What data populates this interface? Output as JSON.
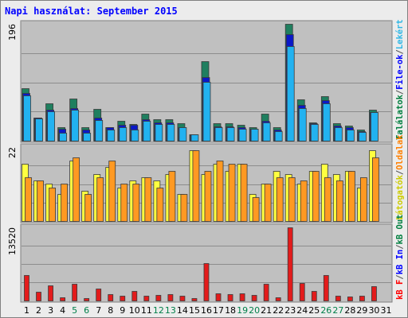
{
  "title": "Napi használat: September 2015",
  "chart_data": {
    "type": "bar",
    "title": "Napi használat: September 2015",
    "x": [
      "1",
      "2",
      "3",
      "4",
      "5",
      "6",
      "7",
      "8",
      "9",
      "10",
      "11",
      "12",
      "13",
      "14",
      "15",
      "16",
      "17",
      "18",
      "19",
      "20",
      "21",
      "22",
      "23",
      "24",
      "25",
      "26",
      "27",
      "28",
      "29",
      "30",
      "31"
    ],
    "weekend_days": [
      "5",
      "6",
      "12",
      "13",
      "19",
      "20",
      "26",
      "27"
    ],
    "panels": [
      {
        "id": "hits",
        "scale_max_label": "196",
        "ylim": [
          0,
          196
        ],
        "right_labels": [
          {
            "text": "Találatok",
            "color": "#007f3f"
          },
          {
            "text": "/",
            "color": "#555555"
          },
          {
            "text": "File-ok",
            "color": "#0000ff"
          },
          {
            "text": "/",
            "color": "#555555"
          },
          {
            "text": "Lekért",
            "color": "#2fb7e6"
          }
        ],
        "series": [
          {
            "name": "Találatok",
            "color": "#1f7f5f",
            "values": [
              88,
              38,
              63,
              23,
              71,
              23,
              53,
              23,
              33,
              28,
              45,
              36,
              36,
              29,
              11,
              133,
              29,
              29,
              26,
              23,
              45,
              22,
              196,
              69,
              31,
              74,
              29,
              25,
              18,
              52,
              0
            ]
          },
          {
            "name": "File-ok",
            "color": "#0a18c8",
            "values": [
              80,
              38,
              52,
              20,
              55,
              19,
              38,
              22,
              27,
              26,
              36,
              31,
              31,
              23,
              10,
              107,
              24,
              24,
              22,
              20,
              33,
              18,
              178,
              60,
              29,
              68,
              25,
              22,
              16,
              48,
              0
            ]
          },
          {
            "name": "Lekért",
            "color": "#22b2f0",
            "values": [
              76,
              37,
              49,
              13,
              52,
              13,
              35,
              19,
              22,
              19,
              33,
              28,
              28,
              22,
              10,
              99,
              22,
              22,
              20,
              20,
              30,
              16,
              159,
              55,
              28,
              62,
              22,
              19,
              15,
              48,
              0
            ]
          }
        ]
      },
      {
        "id": "visits",
        "scale_max_label": "22",
        "ylim": [
          0,
          22
        ],
        "right_labels": [
          {
            "text": "Látogatók",
            "color": "#cccc00"
          },
          {
            "text": "/",
            "color": "#555555"
          },
          {
            "text": "Oldalak",
            "color": "#ff8000"
          }
        ],
        "series": [
          {
            "name": "Látogatók",
            "color": "#ffff40",
            "values": [
              17,
              12,
              11,
              8,
              18,
              9,
              14,
              16,
              10,
              12,
              13,
              12,
              14,
              8,
              21,
              14,
              17,
              15,
              17,
              8,
              11,
              15,
              14,
              11,
              15,
              17,
              14,
              15,
              10,
              21,
              0
            ]
          },
          {
            "name": "Oldalak",
            "color": "#ff9922",
            "values": [
              13,
              12,
              10,
              11,
              19,
              8,
              13,
              18,
              11,
              11,
              13,
              10,
              15,
              8,
              21,
              15,
              18,
              17,
              17,
              7,
              11,
              13,
              13,
              12,
              15,
              13,
              12,
              15,
              13,
              19,
              0
            ]
          }
        ]
      },
      {
        "id": "traffic",
        "scale_max_label": "13520",
        "ylim": [
          0,
          13520
        ],
        "right_labels": [
          {
            "text": "kB F",
            "color": "#ff0000"
          },
          {
            "text": "/",
            "color": "#555555"
          },
          {
            "text": "kB In",
            "color": "#0000ff"
          },
          {
            "text": "/",
            "color": "#555555"
          },
          {
            "text": "kB Out",
            "color": "#007f3f"
          }
        ],
        "series": [
          {
            "name": "kB F",
            "color": "#e31b1b",
            "values": [
              4650,
              1550,
              2750,
              620,
              3100,
              500,
              2250,
              1150,
              900,
              1800,
              950,
              1100,
              1200,
              900,
              480,
              6850,
              1350,
              1200,
              1300,
              1050,
              3100,
              580,
              13520,
              3250,
              1700,
              4700,
              820,
              800,
              950,
              2650,
              0
            ]
          }
        ]
      }
    ]
  }
}
